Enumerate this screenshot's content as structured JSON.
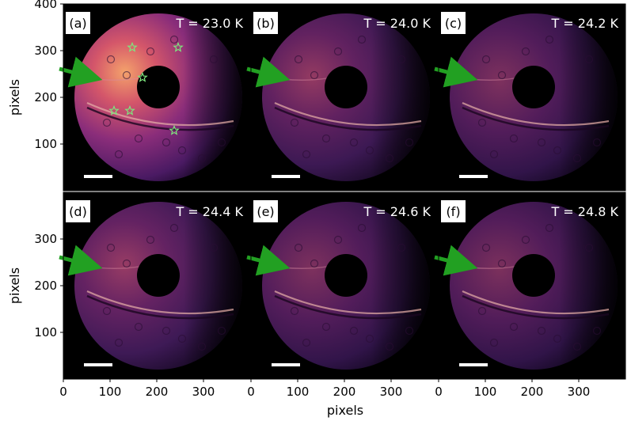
{
  "figure": {
    "xlabel": "pixels",
    "ylabel": "pixels",
    "x_ticks": [
      "0",
      "100",
      "200",
      "300"
    ],
    "y_ticks_top": [
      "100",
      "200",
      "300",
      "400"
    ],
    "y_ticks_bottom": [
      "100",
      "200",
      "300"
    ],
    "scale_bar_color": "#ffffff",
    "arrow_color": "#22a022",
    "star_color": "#7ee67e"
  },
  "panels": [
    {
      "label": "(a)",
      "temperature": "T = 23.0 K",
      "brightness": 1.0
    },
    {
      "label": "(b)",
      "temperature": "T = 24.0 K",
      "brightness": 0.55
    },
    {
      "label": "(c)",
      "temperature": "T = 24.2 K",
      "brightness": 0.5
    },
    {
      "label": "(d)",
      "temperature": "T = 24.4 K",
      "brightness": 0.6
    },
    {
      "label": "(e)",
      "temperature": "T = 24.6 K",
      "brightness": 0.52
    },
    {
      "label": "(f)",
      "temperature": "T = 24.8 K",
      "brightness": 0.48
    }
  ]
}
